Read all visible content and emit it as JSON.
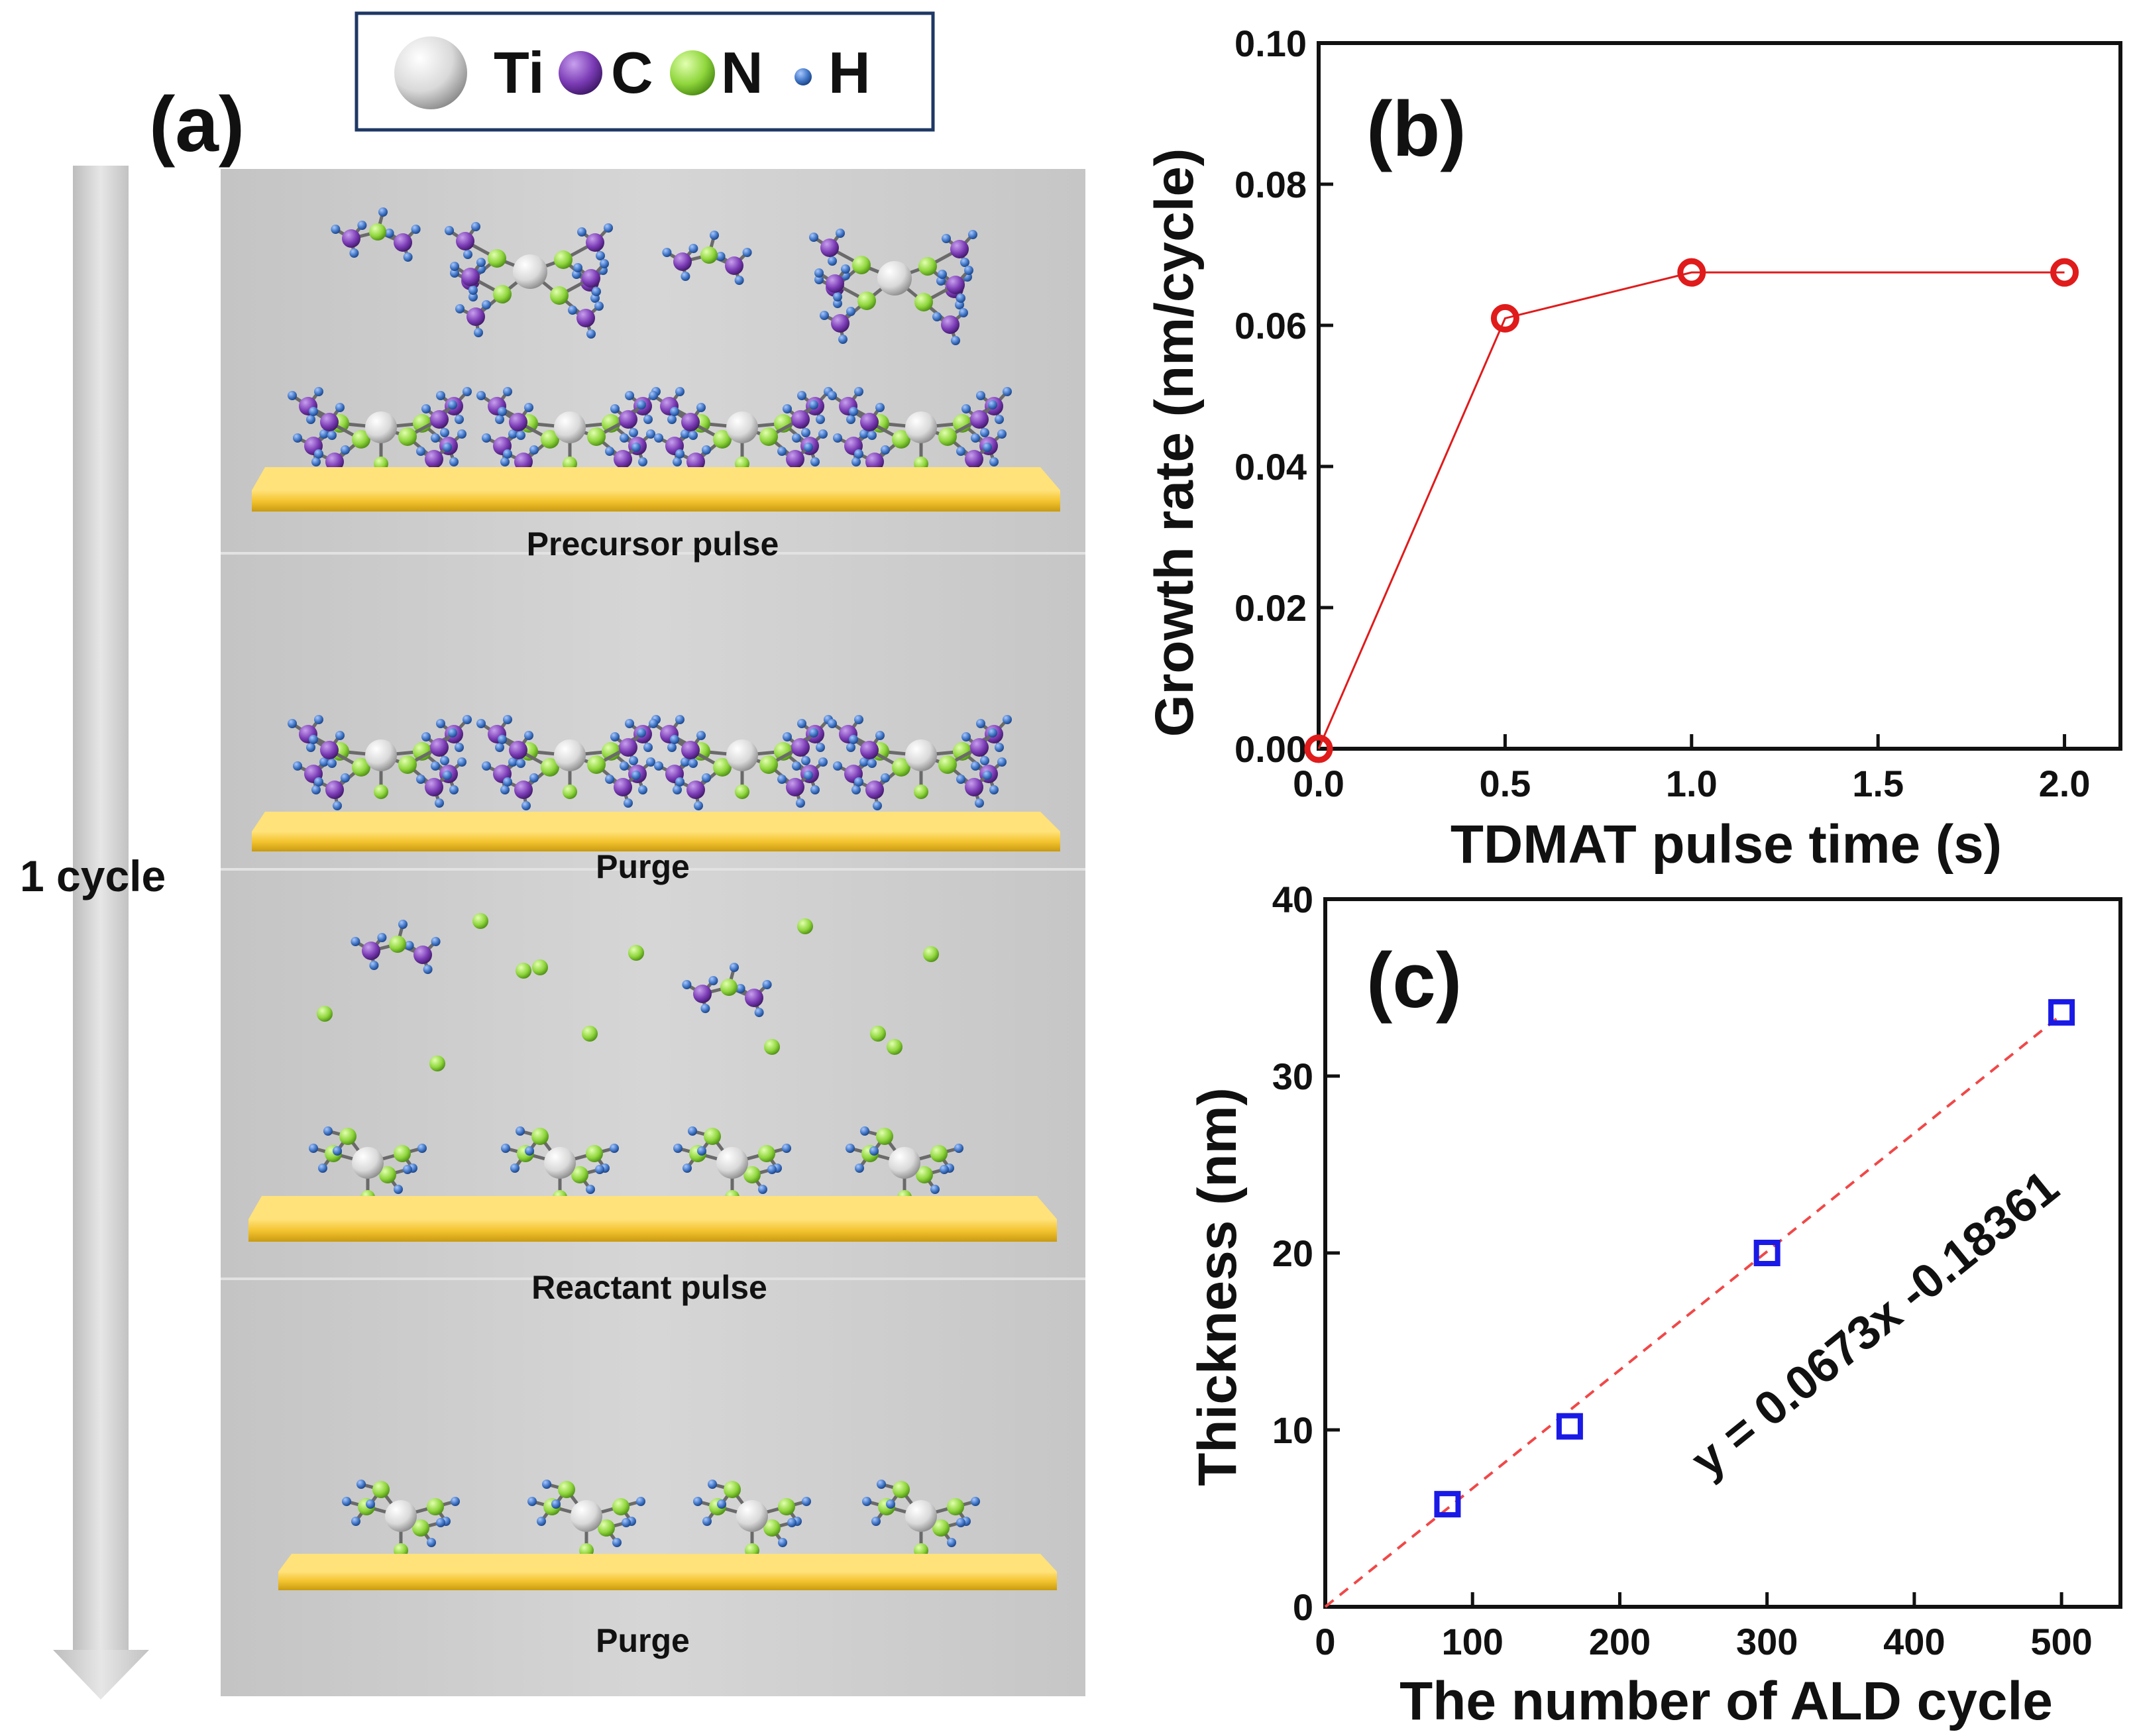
{
  "panel_a": {
    "label": "(a)",
    "cycle_label": "1 cycle",
    "steps": [
      "Precursor pulse",
      "Purge",
      "Reactant pulse",
      "Purge"
    ],
    "legend": [
      {
        "symbol": "Ti",
        "color": "#e4e4e4"
      },
      {
        "symbol": "C",
        "color": "#7b3bb5"
      },
      {
        "symbol": "N",
        "color": "#8fd63c"
      },
      {
        "symbol": "H",
        "color": "#3f74c4"
      }
    ],
    "colors": {
      "background": "#cfcfcf",
      "substrate": "#f4c430",
      "arrow": "#dcdcdc"
    }
  },
  "chart_data": [
    {
      "type": "line",
      "panel_label": "(b)",
      "x": [
        0.0,
        0.5,
        1.0,
        2.0
      ],
      "y": [
        0.0,
        0.061,
        0.0675,
        0.0675
      ],
      "xlabel": "TDMAT pulse time (s)",
      "ylabel": "Growth rate (nm/cycle)",
      "xlim": [
        0.0,
        2.15
      ],
      "ylim": [
        0.0,
        0.1
      ],
      "xticks": [
        "0.0",
        "0.5",
        "1.0",
        "1.5",
        "2.0"
      ],
      "yticks": [
        "0.00",
        "0.02",
        "0.04",
        "0.06",
        "0.08",
        "0.10"
      ],
      "marker": "open-circle",
      "color": "#e01b1b"
    },
    {
      "type": "scatter",
      "panel_label": "(c)",
      "x": [
        83,
        166,
        300,
        500
      ],
      "y": [
        5.8,
        10.2,
        20.0,
        33.6
      ],
      "xlabel": "The number of ALD cycle",
      "ylabel": "Thickness (nm)",
      "xlim": [
        0,
        540
      ],
      "ylim": [
        0,
        40
      ],
      "xticks": [
        "0",
        "100",
        "200",
        "300",
        "400",
        "500"
      ],
      "yticks": [
        "0",
        "10",
        "20",
        "30",
        "40"
      ],
      "marker": "open-square",
      "color": "#1a1ae6",
      "fit": {
        "slope": 0.0673,
        "intercept": -0.18361,
        "x_range": [
          0,
          500
        ],
        "label": "y = 0.0673x -0.18361",
        "color": "#f04848",
        "label_color": "#b01010"
      }
    }
  ]
}
